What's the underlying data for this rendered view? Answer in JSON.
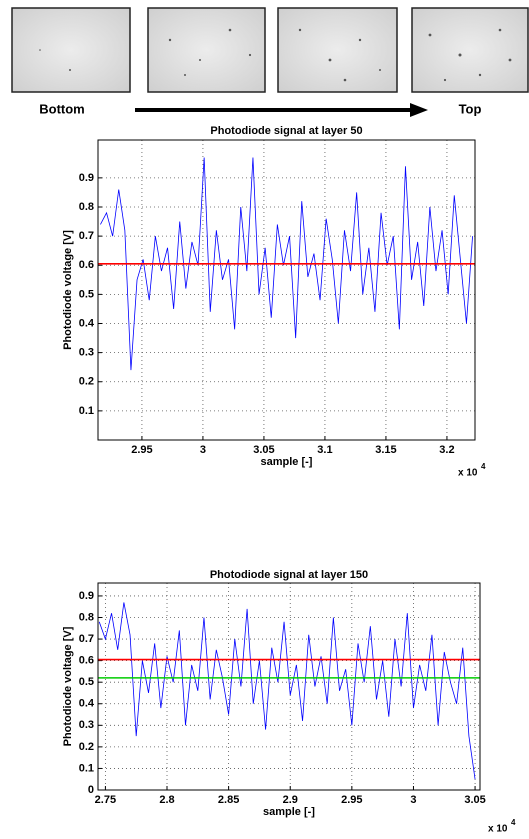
{
  "header": {
    "left_label": "Bottom",
    "right_label": "Top"
  },
  "chart_data": [
    {
      "type": "line",
      "title": "Photodiode signal at layer 50",
      "xlabel": "sample [-]",
      "ylabel": "Photodiode voltage [V]",
      "x_multiplier": {
        "base": "x 10",
        "exponent": "4"
      },
      "x": [
        2.916,
        2.921,
        2.926,
        2.931,
        2.936,
        2.941,
        2.946,
        2.951,
        2.956,
        2.961,
        2.966,
        2.971,
        2.976,
        2.981,
        2.986,
        2.991,
        2.996,
        3.001,
        3.006,
        3.011,
        3.016,
        3.021,
        3.026,
        3.031,
        3.036,
        3.041,
        3.046,
        3.051,
        3.056,
        3.061,
        3.066,
        3.071,
        3.076,
        3.081,
        3.086,
        3.091,
        3.096,
        3.101,
        3.106,
        3.111,
        3.116,
        3.121,
        3.126,
        3.131,
        3.136,
        3.141,
        3.146,
        3.151,
        3.156,
        3.161,
        3.166,
        3.171,
        3.176,
        3.181,
        3.186,
        3.191,
        3.196,
        3.201,
        3.206,
        3.211,
        3.216,
        3.221
      ],
      "series": [
        {
          "color": "#0000ff",
          "values": [
            0.74,
            0.78,
            0.7,
            0.86,
            0.72,
            0.24,
            0.55,
            0.62,
            0.48,
            0.7,
            0.58,
            0.66,
            0.45,
            0.75,
            0.52,
            0.68,
            0.6,
            0.97,
            0.44,
            0.72,
            0.55,
            0.62,
            0.38,
            0.8,
            0.58,
            0.97,
            0.5,
            0.66,
            0.42,
            0.74,
            0.6,
            0.7,
            0.35,
            0.82,
            0.56,
            0.64,
            0.48,
            0.76,
            0.62,
            0.4,
            0.72,
            0.58,
            0.85,
            0.5,
            0.66,
            0.44,
            0.78,
            0.6,
            0.7,
            0.38,
            0.94,
            0.55,
            0.68,
            0.46,
            0.8,
            0.58,
            0.72,
            0.5,
            0.84,
            0.62,
            0.4,
            0.7
          ]
        }
      ],
      "reference_lines": [
        {
          "value": 0.605,
          "color": "#ff0000"
        }
      ],
      "xlim": [
        2.914,
        3.223
      ],
      "ylim": [
        0,
        1.03
      ],
      "xticks": [
        2.95,
        3,
        3.05,
        3.1,
        3.15,
        3.2
      ],
      "yticks": [
        0.1,
        0.2,
        0.3,
        0.4,
        0.5,
        0.6,
        0.7,
        0.8,
        0.9
      ],
      "grid": true
    },
    {
      "type": "line",
      "title": "Photodiode signal at layer 150",
      "xlabel": "sample [-]",
      "ylabel": "Photodiode voltage [V]",
      "x_multiplier": {
        "base": "x 10",
        "exponent": "4"
      },
      "x": [
        2.745,
        2.75,
        2.755,
        2.76,
        2.765,
        2.77,
        2.775,
        2.78,
        2.785,
        2.79,
        2.795,
        2.8,
        2.805,
        2.81,
        2.815,
        2.82,
        2.825,
        2.83,
        2.835,
        2.84,
        2.845,
        2.85,
        2.855,
        2.86,
        2.865,
        2.87,
        2.875,
        2.88,
        2.885,
        2.89,
        2.895,
        2.9,
        2.905,
        2.91,
        2.915,
        2.92,
        2.925,
        2.93,
        2.935,
        2.94,
        2.945,
        2.95,
        2.955,
        2.96,
        2.965,
        2.97,
        2.975,
        2.98,
        2.985,
        2.99,
        2.995,
        3.0,
        3.005,
        3.01,
        3.015,
        3.02,
        3.025,
        3.03,
        3.035,
        3.04,
        3.045,
        3.05
      ],
      "series": [
        {
          "color": "#0000ff",
          "values": [
            0.78,
            0.7,
            0.82,
            0.65,
            0.87,
            0.72,
            0.25,
            0.6,
            0.45,
            0.68,
            0.38,
            0.62,
            0.5,
            0.74,
            0.3,
            0.58,
            0.46,
            0.8,
            0.42,
            0.65,
            0.52,
            0.35,
            0.7,
            0.48,
            0.84,
            0.4,
            0.6,
            0.28,
            0.66,
            0.5,
            0.78,
            0.44,
            0.58,
            0.32,
            0.72,
            0.48,
            0.62,
            0.4,
            0.8,
            0.46,
            0.56,
            0.3,
            0.68,
            0.5,
            0.76,
            0.42,
            0.6,
            0.34,
            0.7,
            0.48,
            0.82,
            0.38,
            0.58,
            0.46,
            0.72,
            0.3,
            0.64,
            0.5,
            0.4,
            0.66,
            0.25,
            0.05
          ]
        }
      ],
      "reference_lines": [
        {
          "value": 0.605,
          "color": "#ff0000"
        },
        {
          "value": 0.52,
          "color": "#00cc00"
        }
      ],
      "xlim": [
        2.744,
        3.054
      ],
      "ylim": [
        0,
        0.96
      ],
      "xticks": [
        2.75,
        2.8,
        2.85,
        2.9,
        2.95,
        3,
        3.05
      ],
      "yticks": [
        0,
        0.1,
        0.2,
        0.3,
        0.4,
        0.5,
        0.6,
        0.7,
        0.8,
        0.9
      ],
      "grid": true
    }
  ]
}
